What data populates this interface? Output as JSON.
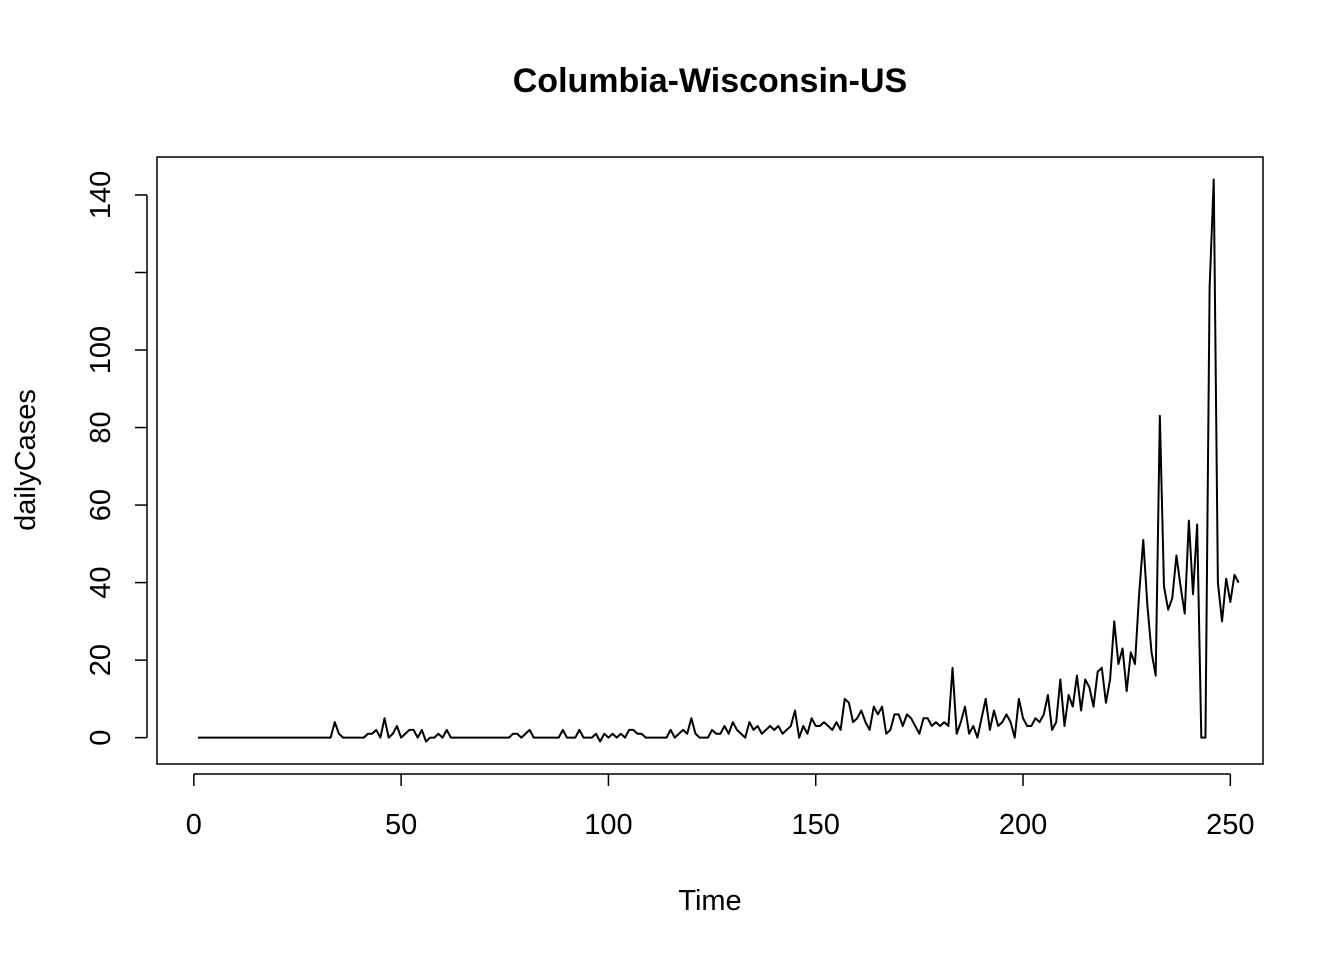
{
  "chart_data": {
    "type": "line",
    "title": "Columbia-Wisconsin-US",
    "xlabel": "Time",
    "ylabel": "dailyCases",
    "xlim": [
      1,
      248
    ],
    "ylim": [
      -1,
      144
    ],
    "x_ticks": [
      0,
      50,
      100,
      150,
      200,
      250
    ],
    "y_ticks": [
      0,
      20,
      40,
      60,
      80,
      100,
      120,
      140
    ],
    "y_tick_labels": [
      "0",
      "20",
      "40",
      "60",
      "80",
      "100",
      "",
      "140"
    ],
    "grid": false,
    "line_color": "#000000",
    "x_start": 1,
    "series": [
      {
        "values": [
          0,
          0,
          0,
          0,
          0,
          0,
          0,
          0,
          0,
          0,
          0,
          0,
          0,
          0,
          0,
          0,
          0,
          0,
          0,
          0,
          0,
          0,
          0,
          0,
          0,
          0,
          0,
          0,
          0,
          0,
          0,
          0,
          0,
          4,
          1,
          0,
          0,
          0,
          0,
          0,
          0,
          1,
          1,
          2,
          0,
          5,
          0,
          1,
          3,
          0,
          1,
          2,
          2,
          0,
          2,
          -1,
          0,
          0,
          1,
          0,
          2,
          0,
          0,
          0,
          0,
          0,
          0,
          0,
          0,
          0,
          0,
          0,
          0,
          0,
          0,
          0,
          1,
          1,
          0,
          1,
          2,
          0,
          0,
          0,
          0,
          0,
          0,
          0,
          2,
          0,
          0,
          0,
          2,
          0,
          0,
          0,
          1,
          -1,
          1,
          0,
          1,
          0,
          1,
          0,
          2,
          2,
          1,
          1,
          0,
          0,
          0,
          0,
          0,
          0,
          2,
          0,
          1,
          2,
          1,
          5,
          1,
          0,
          0,
          0,
          2,
          1,
          1,
          3,
          1,
          4,
          2,
          1,
          0,
          4,
          2,
          3,
          1,
          2,
          3,
          2,
          3,
          1,
          2,
          3,
          7,
          0,
          3,
          1,
          5,
          3,
          3,
          4,
          3,
          2,
          4,
          2,
          10,
          9,
          4,
          5,
          7,
          4,
          2,
          8,
          6,
          8,
          1,
          2,
          6,
          6,
          3,
          6,
          5,
          3,
          1,
          5,
          5,
          3,
          4,
          3,
          4,
          3,
          18,
          1,
          4,
          8,
          1,
          3,
          0,
          5,
          10,
          2,
          7,
          3,
          4,
          6,
          4,
          0,
          10,
          5,
          3,
          3,
          5,
          4,
          6,
          11,
          2,
          4,
          15,
          3,
          11,
          8,
          16,
          7,
          15,
          13,
          8,
          17,
          18,
          9,
          15,
          30,
          19,
          23,
          12,
          22,
          19,
          37,
          51,
          34,
          22,
          16,
          83,
          39,
          33,
          36,
          47,
          39,
          32,
          56,
          37,
          55,
          0,
          0,
          116,
          144,
          40,
          30,
          41,
          35,
          42,
          40
        ]
      }
    ]
  }
}
